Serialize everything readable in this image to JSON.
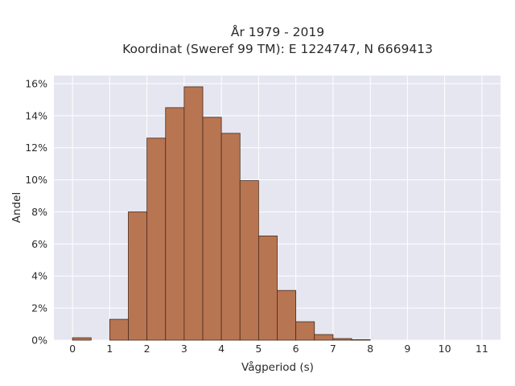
{
  "chart_data": {
    "type": "bar",
    "title_line1": "År 1979 - 2019",
    "title_line2": "Koordinat (Sweref 99 TM): E 1224747, N 6669413",
    "xlabel": "Vågperiod (s)",
    "ylabel": "Andel",
    "bin_width": 0.5,
    "bins": [
      {
        "x0": 0.0,
        "value": 0.15
      },
      {
        "x0": 0.5,
        "value": 0.0
      },
      {
        "x0": 1.0,
        "value": 1.3
      },
      {
        "x0": 1.5,
        "value": 8.0
      },
      {
        "x0": 2.0,
        "value": 12.6
      },
      {
        "x0": 2.5,
        "value": 14.5
      },
      {
        "x0": 3.0,
        "value": 15.8
      },
      {
        "x0": 3.5,
        "value": 13.9
      },
      {
        "x0": 4.0,
        "value": 12.9
      },
      {
        "x0": 4.5,
        "value": 9.95
      },
      {
        "x0": 5.0,
        "value": 6.5
      },
      {
        "x0": 5.5,
        "value": 3.1
      },
      {
        "x0": 6.0,
        "value": 1.15
      },
      {
        "x0": 6.5,
        "value": 0.35
      },
      {
        "x0": 7.0,
        "value": 0.1
      },
      {
        "x0": 7.5,
        "value": 0.03
      }
    ],
    "xlim": [
      -0.5,
      11.5
    ],
    "ylim": [
      0,
      16.5
    ],
    "x_ticks": [
      0,
      1,
      2,
      3,
      4,
      5,
      6,
      7,
      8,
      9,
      10,
      11
    ],
    "y_ticks": [
      0,
      2,
      4,
      6,
      8,
      10,
      12,
      14,
      16
    ],
    "y_tick_suffix": "%",
    "grid": true,
    "legend": "none",
    "colors": {
      "bar_fill": "#b87552",
      "bar_edge": "#4a2a1a",
      "plot_bg": "#e5e6f0",
      "grid": "#ffffff"
    }
  }
}
